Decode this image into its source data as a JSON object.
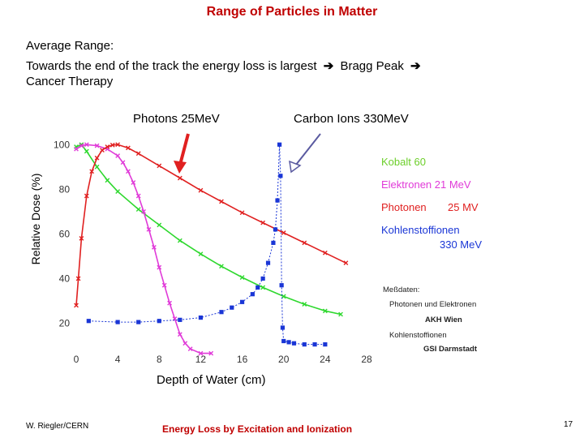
{
  "slide": {
    "title": "Range of Particles in Matter",
    "body_lines": [
      "Average Range:",
      "Towards the end of the track the energy loss is largest",
      "Bragg Peak",
      "Cancer Therapy"
    ],
    "arrow_icon": "right-arrow-icon",
    "callouts": {
      "photons": "Photons 25MeV",
      "carbon": "Carbon Ions 330MeV"
    },
    "footer": {
      "author": "W. Riegler/CERN",
      "caption": "Energy Loss by Excitation and Ionization",
      "page": "17"
    }
  },
  "chart_data": {
    "type": "line",
    "xlabel": "Depth of Water (cm)",
    "ylabel": "Relative Dose (%)",
    "xlim": [
      0,
      28
    ],
    "ylim": [
      10,
      103
    ],
    "x_ticks": [
      0,
      4,
      8,
      12,
      16,
      20,
      24,
      28
    ],
    "y_ticks": [
      20,
      40,
      60,
      80,
      100
    ],
    "grid": false,
    "legend": {
      "entries": [
        {
          "label": "Kobalt 60",
          "color": "#6ccf2a"
        },
        {
          "label": "Elektronen 21 MeV",
          "color": "#e03ad8"
        },
        {
          "label": "Photonen",
          "extra": "25 MV",
          "color": "#e02020"
        },
        {
          "label": "Kohlenstoffionen",
          "extra": "330 MeV",
          "color": "#1a36d6"
        }
      ],
      "notes": [
        "Meßdaten:",
        "Photonen und Elektronen",
        "AKH Wien",
        "Kohlenstoffionen",
        "GSI Darmstadt"
      ]
    },
    "series": [
      {
        "name": "Kobalt 60",
        "color": "#2ed82e",
        "marker": "x",
        "x": [
          0,
          0.5,
          1,
          2,
          3,
          4,
          6,
          8,
          10,
          12,
          14,
          16,
          18,
          20,
          22,
          24,
          25.5
        ],
        "y": [
          99,
          100,
          97,
          90,
          84,
          79,
          71,
          64,
          57,
          51,
          45.5,
          40.5,
          36,
          32,
          28.5,
          25.5,
          24
        ]
      },
      {
        "name": "Elektronen 21 MeV",
        "color": "#e03ad8",
        "marker": "x",
        "x": [
          0,
          0.5,
          1,
          2,
          3,
          4,
          4.5,
          5,
          5.5,
          6,
          6.5,
          7,
          7.5,
          8,
          8.5,
          9,
          9.5,
          10,
          10.5,
          11,
          12,
          13
        ],
        "y": [
          98,
          99.5,
          100,
          99.5,
          98,
          95,
          92,
          88,
          83,
          77,
          70,
          62,
          54,
          45,
          37,
          29,
          22,
          15,
          11,
          8.5,
          6.5,
          6.5
        ]
      },
      {
        "name": "Photonen 25 MV",
        "color": "#e02020",
        "marker": "x",
        "x": [
          0,
          0.2,
          0.5,
          1,
          1.5,
          2,
          2.5,
          3,
          3.5,
          4,
          5,
          6,
          8,
          10,
          12,
          14,
          16,
          18,
          20,
          22,
          24,
          26
        ],
        "y": [
          28,
          40,
          58,
          77,
          88,
          94,
          97.5,
          99,
          99.8,
          100,
          98.5,
          96,
          90.5,
          85,
          79.5,
          74.5,
          69.5,
          65,
          60.5,
          56,
          51.5,
          47
        ]
      },
      {
        "name": "Kohlenstoffionen 330 MeV",
        "color": "#1a36d6",
        "marker": "square",
        "x": [
          1.2,
          4,
          6,
          8,
          10,
          12,
          14,
          15,
          16,
          17,
          17.5,
          18,
          18.5,
          19,
          19.2,
          19.4,
          19.6,
          19.7,
          19.8,
          19.9,
          20,
          20.5,
          21,
          22,
          23,
          24
        ],
        "y": [
          21,
          20.5,
          20.5,
          21,
          21.5,
          22.5,
          25,
          27,
          29.5,
          33,
          36,
          40,
          47,
          56,
          62,
          75,
          100,
          86,
          37,
          18,
          12,
          11.5,
          11,
          10.5,
          10.5,
          10.5
        ]
      }
    ]
  }
}
